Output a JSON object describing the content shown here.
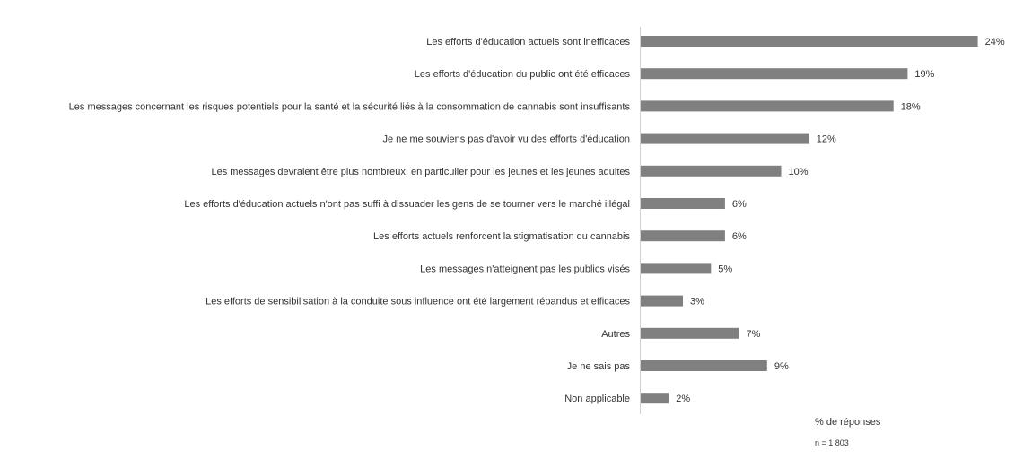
{
  "chart_data": {
    "type": "bar",
    "orientation": "horizontal",
    "categories": [
      "Les efforts d'éducation actuels sont inefficaces",
      "Les efforts d'éducation du public ont été efficaces",
      "Les messages concernant les risques potentiels pour la santé et la sécurité liés à la consommation de cannabis sont insuffisants",
      "Je ne me souviens pas d'avoir vu des efforts d'éducation",
      "Les messages devraient être plus nombreux, en particulier pour les jeunes et les jeunes adultes",
      "Les efforts d'éducation actuels n'ont pas suffi à dissuader les gens de se tourner vers le marché illégal",
      "Les efforts actuels renforcent la stigmatisation du cannabis",
      "Les messages n'atteignent pas les publics visés",
      "Les efforts de sensibilisation à la conduite sous influence ont été largement répandus et efficaces",
      "Autres",
      "Je ne sais pas",
      "Non applicable"
    ],
    "values": [
      24,
      19,
      18,
      12,
      10,
      6,
      6,
      5,
      3,
      7,
      9,
      2
    ],
    "value_labels": [
      "24%",
      "19%",
      "18%",
      "12%",
      "10%",
      "6%",
      "6%",
      "5%",
      "3%",
      "7%",
      "9%",
      "2%"
    ],
    "xlabel": "% de réponses",
    "note": "n = 1 803",
    "xlim": [
      0,
      24
    ],
    "bar_color": "#808080",
    "grid": false,
    "legend": "none"
  }
}
